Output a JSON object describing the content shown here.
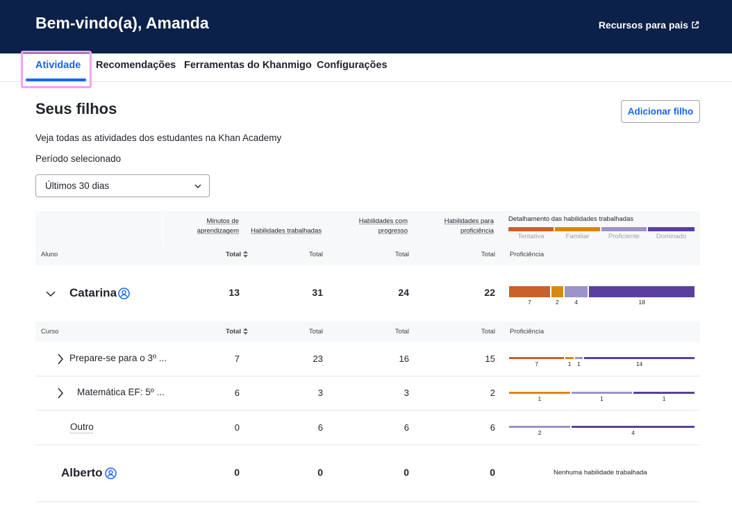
{
  "header": {
    "welcome": "Bem-vindo(a), Amanda",
    "resources_link": "Recursos para pais"
  },
  "tabs": [
    {
      "label": "Atividade",
      "active": true
    },
    {
      "label": "Recomendações",
      "active": false
    },
    {
      "label": "Ferramentas do Khanmigo",
      "active": false
    },
    {
      "label": "Configurações",
      "active": false
    }
  ],
  "page": {
    "title": "Seus filhos",
    "add_button": "Adicionar filho",
    "subtitle": "Veja todas as atividades dos estudantes na Khan Academy",
    "period_label": "Período selecionado",
    "period_value": "Últimos 30 dias"
  },
  "table": {
    "headers": {
      "minutes": [
        "Minutos de",
        "aprendizagem"
      ],
      "skills_worked": "Habilidades trabalhadas",
      "skills_progress": [
        "Habilidades com",
        "progresso"
      ],
      "skills_proficiency": [
        "Habilidades para",
        "proficiência"
      ],
      "breakdown": "Detalhamento das habilidades trabalhadas"
    },
    "legend": [
      {
        "label": "Tentativa",
        "color": "#c9612b"
      },
      {
        "label": "Familiar",
        "color": "#d9880f"
      },
      {
        "label": "Proficiente",
        "color": "#9b93c9"
      },
      {
        "label": "Dominado",
        "color": "#5b3f9c"
      }
    ],
    "subheaders": {
      "student": "Aluno",
      "course": "Curso",
      "total": "Total",
      "proficiency": "Proficiência"
    },
    "children": [
      {
        "name": "Catarina",
        "minutes": "13",
        "worked": "31",
        "progress": "24",
        "proficiency": "22",
        "breakdown": {
          "tentativa": 7,
          "familiar": 2,
          "proficiente": 4,
          "dominado": 18
        },
        "courses": [
          {
            "name": "Prepare-se para o 3º ...",
            "minutes": "7",
            "worked": "23",
            "progress": "16",
            "proficiency": "15",
            "breakdown": {
              "tentativa": 7,
              "familiar": 1,
              "proficiente": 1,
              "dominado": 14
            }
          },
          {
            "name": "Matemática EF: 5º ...",
            "minutes": "6",
            "worked": "3",
            "progress": "3",
            "proficiency": "2",
            "breakdown": {
              "tentativa": 0,
              "familiar": 1,
              "proficiente": 1,
              "dominado": 1
            }
          },
          {
            "name": "Outro",
            "minutes": "0",
            "worked": "6",
            "progress": "6",
            "proficiency": "6",
            "breakdown": {
              "tentativa": 0,
              "familiar": 0,
              "proficiente": 2,
              "dominado": 4
            }
          }
        ]
      },
      {
        "name": "Alberto",
        "minutes": "0",
        "worked": "0",
        "progress": "0",
        "proficiency": "0",
        "no_skills": "Nenhuma habilidade trabalhada"
      }
    ]
  }
}
